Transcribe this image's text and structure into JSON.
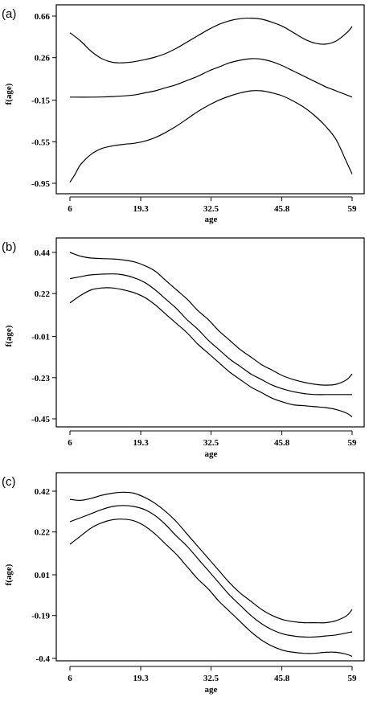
{
  "chart_data": [
    {
      "type": "line",
      "panel_label": "(a)",
      "xlabel": "age",
      "ylabel": "f(age)",
      "xlim": [
        6,
        59
      ],
      "ylim": [
        -0.95,
        0.66
      ],
      "x_ticks": [
        6,
        19.3,
        32.5,
        45.8,
        59
      ],
      "x_tick_labels": [
        "6",
        "19.3",
        "32.5",
        "45.8",
        "59"
      ],
      "y_ticks": [
        0.66,
        0.26,
        -0.15,
        -0.55,
        -0.95
      ],
      "y_tick_labels": [
        "0.66",
        "0.26",
        "-0.15",
        "-0.55",
        "-0.95"
      ],
      "series": [
        {
          "role": "upper",
          "points": [
            [
              6,
              0.5
            ],
            [
              8,
              0.42
            ],
            [
              10,
              0.32
            ],
            [
              12,
              0.25
            ],
            [
              14,
              0.215
            ],
            [
              16,
              0.21
            ],
            [
              18,
              0.22
            ],
            [
              20,
              0.24
            ],
            [
              22,
              0.265
            ],
            [
              24,
              0.3
            ],
            [
              26,
              0.35
            ],
            [
              28,
              0.41
            ],
            [
              30,
              0.47
            ],
            [
              32,
              0.53
            ],
            [
              34,
              0.58
            ],
            [
              36,
              0.615
            ],
            [
              38,
              0.635
            ],
            [
              40,
              0.64
            ],
            [
              42,
              0.63
            ],
            [
              44,
              0.6
            ],
            [
              46,
              0.56
            ],
            [
              48,
              0.5
            ],
            [
              50,
              0.44
            ],
            [
              52,
              0.4
            ],
            [
              54,
              0.39
            ],
            [
              56,
              0.42
            ],
            [
              58,
              0.5
            ],
            [
              59,
              0.56
            ]
          ]
        },
        {
          "role": "estimate",
          "points": [
            [
              6,
              -0.12
            ],
            [
              10,
              -0.12
            ],
            [
              14,
              -0.115
            ],
            [
              18,
              -0.1
            ],
            [
              20,
              -0.08
            ],
            [
              22,
              -0.06
            ],
            [
              24,
              -0.03
            ],
            [
              26,
              0.0
            ],
            [
              28,
              0.04
            ],
            [
              30,
              0.08
            ],
            [
              32,
              0.13
            ],
            [
              34,
              0.17
            ],
            [
              36,
              0.21
            ],
            [
              38,
              0.235
            ],
            [
              40,
              0.25
            ],
            [
              42,
              0.245
            ],
            [
              44,
              0.22
            ],
            [
              46,
              0.18
            ],
            [
              48,
              0.13
            ],
            [
              50,
              0.08
            ],
            [
              52,
              0.03
            ],
            [
              54,
              -0.02
            ],
            [
              56,
              -0.06
            ],
            [
              58,
              -0.1
            ],
            [
              59,
              -0.12
            ]
          ]
        },
        {
          "role": "lower",
          "points": [
            [
              6,
              -0.94
            ],
            [
              7,
              -0.86
            ],
            [
              8,
              -0.77
            ],
            [
              10,
              -0.67
            ],
            [
              12,
              -0.615
            ],
            [
              14,
              -0.59
            ],
            [
              16,
              -0.575
            ],
            [
              18,
              -0.565
            ],
            [
              20,
              -0.545
            ],
            [
              22,
              -0.51
            ],
            [
              24,
              -0.46
            ],
            [
              26,
              -0.4
            ],
            [
              28,
              -0.33
            ],
            [
              30,
              -0.26
            ],
            [
              32,
              -0.2
            ],
            [
              34,
              -0.15
            ],
            [
              36,
              -0.11
            ],
            [
              38,
              -0.08
            ],
            [
              40,
              -0.06
            ],
            [
              42,
              -0.06
            ],
            [
              44,
              -0.08
            ],
            [
              46,
              -0.11
            ],
            [
              48,
              -0.16
            ],
            [
              50,
              -0.22
            ],
            [
              52,
              -0.3
            ],
            [
              54,
              -0.4
            ],
            [
              56,
              -0.53
            ],
            [
              58,
              -0.75
            ],
            [
              59,
              -0.86
            ]
          ]
        }
      ]
    },
    {
      "type": "line",
      "panel_label": "(b)",
      "xlabel": "age",
      "ylabel": "f(age)",
      "xlim": [
        6,
        59
      ],
      "ylim": [
        -0.45,
        0.44
      ],
      "x_ticks": [
        6,
        19.3,
        32.5,
        45.8,
        59
      ],
      "x_tick_labels": [
        "6",
        "19.3",
        "32.5",
        "45.8",
        "59"
      ],
      "y_ticks": [
        0.44,
        0.22,
        -0.01,
        -0.23,
        -0.45
      ],
      "y_tick_labels": [
        "0.44",
        "0.22",
        "-0.01",
        "-0.23",
        "-0.45"
      ],
      "series": [
        {
          "role": "upper",
          "points": [
            [
              6,
              0.44
            ],
            [
              8,
              0.42
            ],
            [
              10,
              0.41
            ],
            [
              14,
              0.405
            ],
            [
              16,
              0.4
            ],
            [
              18,
              0.39
            ],
            [
              20,
              0.37
            ],
            [
              22,
              0.34
            ],
            [
              24,
              0.29
            ],
            [
              26,
              0.24
            ],
            [
              28,
              0.19
            ],
            [
              30,
              0.13
            ],
            [
              32,
              0.08
            ],
            [
              34,
              0.02
            ],
            [
              36,
              -0.03
            ],
            [
              38,
              -0.08
            ],
            [
              40,
              -0.12
            ],
            [
              42,
              -0.16
            ],
            [
              44,
              -0.19
            ],
            [
              46,
              -0.22
            ],
            [
              48,
              -0.24
            ],
            [
              50,
              -0.255
            ],
            [
              52,
              -0.265
            ],
            [
              54,
              -0.27
            ],
            [
              56,
              -0.265
            ],
            [
              58,
              -0.24
            ],
            [
              59,
              -0.21
            ]
          ]
        },
        {
          "role": "estimate",
          "points": [
            [
              6,
              0.3
            ],
            [
              8,
              0.31
            ],
            [
              10,
              0.32
            ],
            [
              14,
              0.325
            ],
            [
              16,
              0.32
            ],
            [
              18,
              0.305
            ],
            [
              20,
              0.28
            ],
            [
              22,
              0.24
            ],
            [
              24,
              0.19
            ],
            [
              26,
              0.14
            ],
            [
              28,
              0.08
            ],
            [
              30,
              0.03
            ],
            [
              32,
              -0.03
            ],
            [
              34,
              -0.08
            ],
            [
              36,
              -0.13
            ],
            [
              38,
              -0.17
            ],
            [
              40,
              -0.21
            ],
            [
              42,
              -0.24
            ],
            [
              44,
              -0.27
            ],
            [
              46,
              -0.29
            ],
            [
              48,
              -0.305
            ],
            [
              50,
              -0.315
            ],
            [
              52,
              -0.32
            ],
            [
              54,
              -0.32
            ],
            [
              56,
              -0.32
            ],
            [
              59,
              -0.32
            ]
          ]
        },
        {
          "role": "lower",
          "points": [
            [
              6,
              0.17
            ],
            [
              8,
              0.21
            ],
            [
              10,
              0.24
            ],
            [
              12,
              0.25
            ],
            [
              14,
              0.25
            ],
            [
              16,
              0.24
            ],
            [
              18,
              0.225
            ],
            [
              20,
              0.2
            ],
            [
              22,
              0.16
            ],
            [
              24,
              0.11
            ],
            [
              26,
              0.06
            ],
            [
              28,
              0.01
            ],
            [
              30,
              -0.05
            ],
            [
              32,
              -0.1
            ],
            [
              34,
              -0.15
            ],
            [
              36,
              -0.2
            ],
            [
              38,
              -0.24
            ],
            [
              40,
              -0.28
            ],
            [
              42,
              -0.31
            ],
            [
              44,
              -0.34
            ],
            [
              46,
              -0.36
            ],
            [
              48,
              -0.375
            ],
            [
              50,
              -0.38
            ],
            [
              52,
              -0.385
            ],
            [
              54,
              -0.39
            ],
            [
              56,
              -0.4
            ],
            [
              58,
              -0.42
            ],
            [
              59,
              -0.44
            ]
          ]
        }
      ]
    },
    {
      "type": "line",
      "panel_label": "(c)",
      "xlabel": "age",
      "ylabel": "f(age)",
      "xlim": [
        6,
        59
      ],
      "ylim": [
        -0.4,
        0.42
      ],
      "x_ticks": [
        6,
        19.3,
        32.5,
        45.8,
        59
      ],
      "x_tick_labels": [
        "6",
        "19.3",
        "32.5",
        "45.8",
        "59"
      ],
      "y_ticks": [
        0.42,
        0.22,
        0.01,
        -0.19,
        -0.4
      ],
      "y_tick_labels": [
        "0.42",
        "0.22",
        "0.01",
        "-0.19",
        "-0.4"
      ],
      "series": [
        {
          "role": "upper",
          "points": [
            [
              6,
              0.38
            ],
            [
              8,
              0.375
            ],
            [
              10,
              0.385
            ],
            [
              12,
              0.4
            ],
            [
              14,
              0.41
            ],
            [
              16,
              0.415
            ],
            [
              18,
              0.41
            ],
            [
              20,
              0.39
            ],
            [
              22,
              0.36
            ],
            [
              24,
              0.32
            ],
            [
              26,
              0.27
            ],
            [
              28,
              0.21
            ],
            [
              30,
              0.15
            ],
            [
              32,
              0.09
            ],
            [
              34,
              0.03
            ],
            [
              36,
              -0.03
            ],
            [
              38,
              -0.08
            ],
            [
              40,
              -0.12
            ],
            [
              42,
              -0.16
            ],
            [
              44,
              -0.19
            ],
            [
              46,
              -0.21
            ],
            [
              48,
              -0.22
            ],
            [
              50,
              -0.225
            ],
            [
              52,
              -0.225
            ],
            [
              54,
              -0.225
            ],
            [
              56,
              -0.215
            ],
            [
              58,
              -0.19
            ],
            [
              59,
              -0.16
            ]
          ]
        },
        {
          "role": "estimate",
          "points": [
            [
              6,
              0.27
            ],
            [
              8,
              0.29
            ],
            [
              10,
              0.31
            ],
            [
              12,
              0.33
            ],
            [
              14,
              0.345
            ],
            [
              16,
              0.35
            ],
            [
              18,
              0.345
            ],
            [
              20,
              0.33
            ],
            [
              22,
              0.3
            ],
            [
              24,
              0.255
            ],
            [
              26,
              0.2
            ],
            [
              28,
              0.15
            ],
            [
              30,
              0.09
            ],
            [
              32,
              0.03
            ],
            [
              34,
              -0.03
            ],
            [
              36,
              -0.09
            ],
            [
              38,
              -0.14
            ],
            [
              40,
              -0.19
            ],
            [
              42,
              -0.23
            ],
            [
              44,
              -0.26
            ],
            [
              46,
              -0.28
            ],
            [
              48,
              -0.29
            ],
            [
              50,
              -0.295
            ],
            [
              52,
              -0.295
            ],
            [
              54,
              -0.29
            ],
            [
              56,
              -0.285
            ],
            [
              58,
              -0.275
            ],
            [
              59,
              -0.27
            ]
          ]
        },
        {
          "role": "lower",
          "points": [
            [
              6,
              0.16
            ],
            [
              8,
              0.2
            ],
            [
              10,
              0.24
            ],
            [
              12,
              0.265
            ],
            [
              14,
              0.28
            ],
            [
              16,
              0.283
            ],
            [
              18,
              0.275
            ],
            [
              20,
              0.25
            ],
            [
              22,
              0.21
            ],
            [
              24,
              0.16
            ],
            [
              26,
              0.11
            ],
            [
              28,
              0.05
            ],
            [
              30,
              -0.01
            ],
            [
              32,
              -0.06
            ],
            [
              34,
              -0.12
            ],
            [
              36,
              -0.17
            ],
            [
              38,
              -0.22
            ],
            [
              40,
              -0.27
            ],
            [
              42,
              -0.31
            ],
            [
              44,
              -0.34
            ],
            [
              46,
              -0.36
            ],
            [
              48,
              -0.37
            ],
            [
              50,
              -0.375
            ],
            [
              52,
              -0.375
            ],
            [
              54,
              -0.37
            ],
            [
              56,
              -0.37
            ],
            [
              58,
              -0.38
            ],
            [
              59,
              -0.39
            ]
          ]
        }
      ]
    }
  ]
}
